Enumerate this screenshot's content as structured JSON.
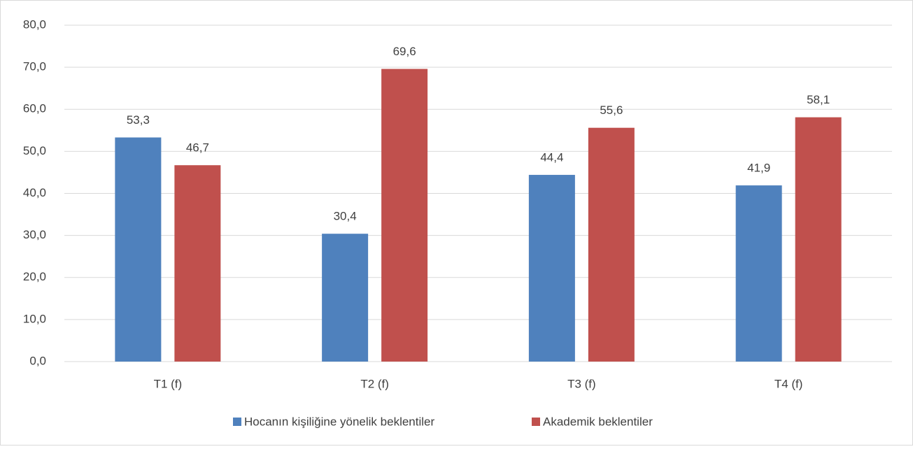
{
  "chart_data": {
    "type": "bar",
    "categories": [
      "T1 (f)",
      "T2 (f)",
      "T3 (f)",
      "T4 (f)"
    ],
    "series": [
      {
        "name": "Hocanın kişiliğine yönelik beklentiler",
        "color": "#4f81bd",
        "values": [
          53.3,
          30.4,
          44.4,
          41.9
        ],
        "value_labels": [
          "53,3",
          "30,4",
          "44,4",
          "41,9"
        ]
      },
      {
        "name": "Akademik beklentiler",
        "color": "#c0504d",
        "values": [
          46.7,
          69.6,
          55.6,
          58.1
        ],
        "value_labels": [
          "46,7",
          "69,6",
          "55,6",
          "58,1"
        ]
      }
    ],
    "ylim": [
      0,
      80
    ],
    "yticks": [
      {
        "value": 0,
        "label": "0,0"
      },
      {
        "value": 10,
        "label": "10,0"
      },
      {
        "value": 20,
        "label": "20,0"
      },
      {
        "value": 30,
        "label": "30,0"
      },
      {
        "value": 40,
        "label": "40,0"
      },
      {
        "value": 50,
        "label": "50,0"
      },
      {
        "value": 60,
        "label": "60,0"
      },
      {
        "value": 70,
        "label": "70,0"
      },
      {
        "value": 80,
        "label": "80,0"
      }
    ],
    "grid": true,
    "legend": "bottom"
  }
}
